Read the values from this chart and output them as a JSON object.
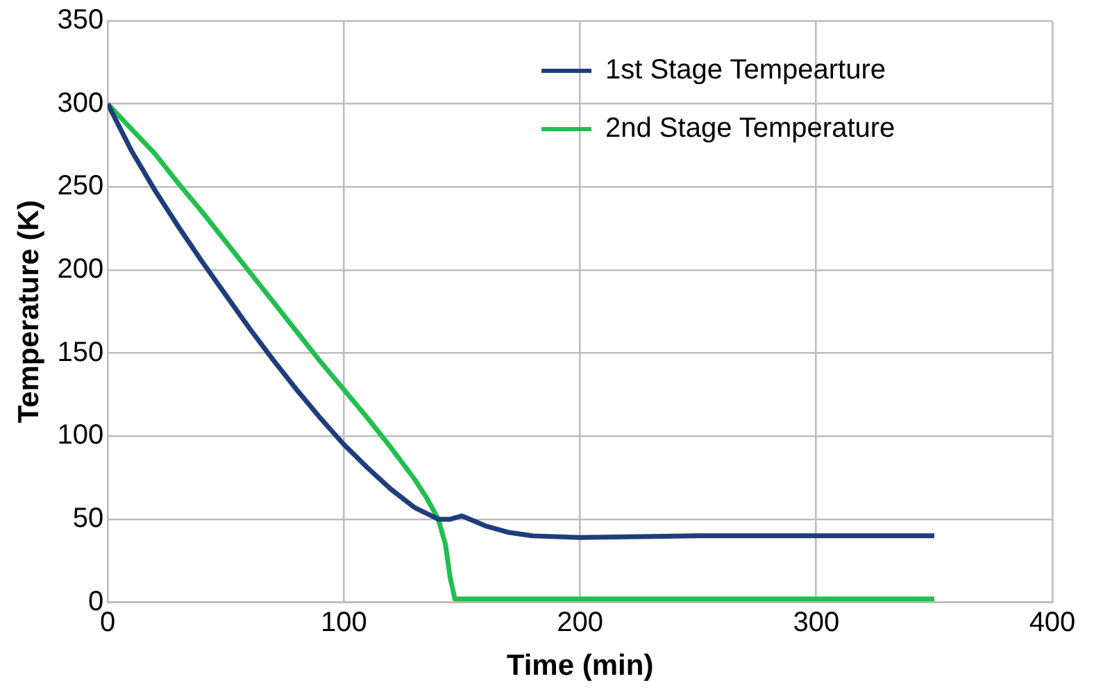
{
  "chart_data": {
    "type": "line",
    "xlabel": "Time (min)",
    "ylabel": "Temperature (K)",
    "xlim": [
      0,
      400
    ],
    "xticks": [
      0,
      100,
      200,
      300,
      400
    ],
    "ylim": [
      0,
      350
    ],
    "yticks": [
      0,
      50,
      100,
      150,
      200,
      250,
      300,
      350
    ],
    "grid": true,
    "legend": "top right",
    "marker": "none",
    "line_style": "solid",
    "series": [
      {
        "name": "1st Stage Tempearture",
        "color": "#1f3d7a",
        "x": [
          0,
          10,
          20,
          30,
          40,
          50,
          60,
          70,
          80,
          90,
          100,
          110,
          120,
          130,
          140,
          145,
          150,
          160,
          170,
          180,
          200,
          250,
          300,
          350
        ],
        "values": [
          300,
          272,
          248,
          226,
          205,
          185,
          165,
          146,
          128,
          111,
          95,
          81,
          68,
          57,
          50,
          50,
          52,
          46,
          42,
          40,
          39,
          40,
          40,
          40
        ]
      },
      {
        "name": "2nd Stage Temperature",
        "color": "#22bf4f",
        "x": [
          0,
          10,
          20,
          30,
          40,
          50,
          60,
          70,
          80,
          90,
          100,
          110,
          120,
          130,
          135,
          140,
          143,
          145,
          147,
          150,
          200,
          350
        ],
        "values": [
          300,
          285,
          270,
          252,
          235,
          217,
          199,
          181,
          163,
          145,
          128,
          111,
          93,
          74,
          63,
          50,
          35,
          15,
          2,
          2,
          2,
          2
        ]
      }
    ]
  }
}
